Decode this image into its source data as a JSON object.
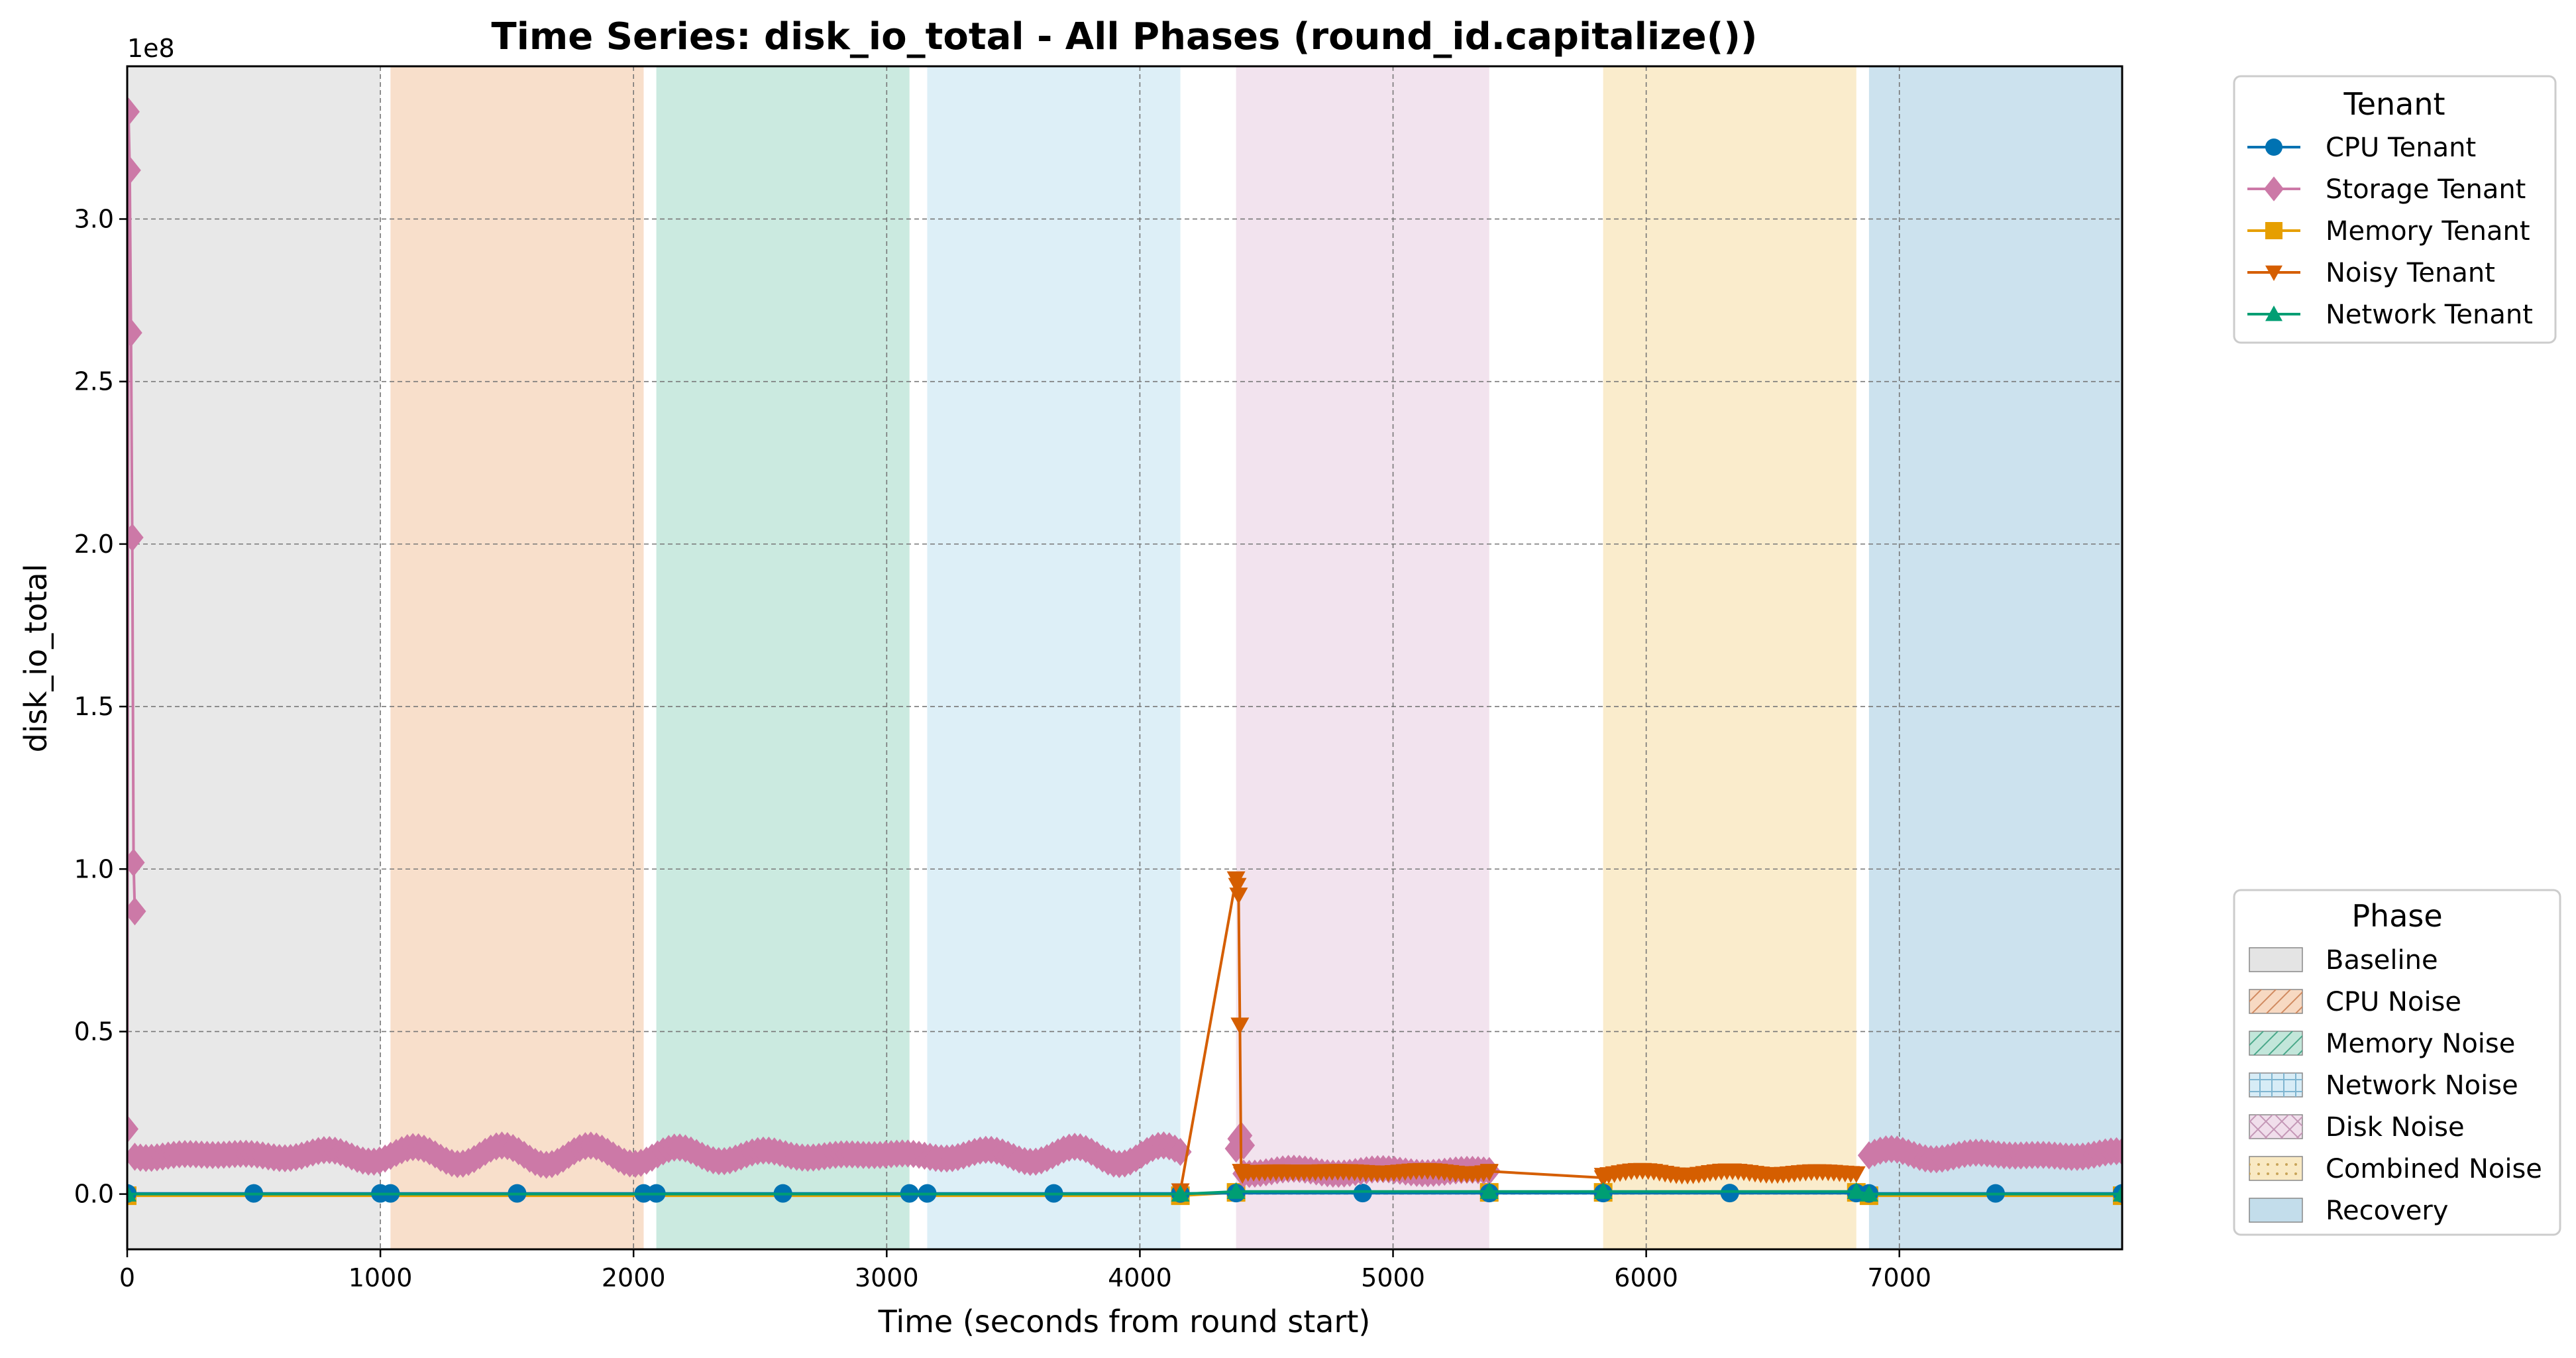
{
  "chart_data": {
    "type": "line",
    "title": "Time Series: disk_io_total - All Phases (round_id.capitalize())",
    "xlabel": "Time (seconds from round start)",
    "ylabel": "disk_io_total",
    "y_offset_label": "1e8",
    "xlim": [
      0,
      7880
    ],
    "ylim": [
      -0.17,
      3.47
    ],
    "y_unit_multiplier": 100000000,
    "x_ticks": [
      0,
      1000,
      2000,
      3000,
      4000,
      5000,
      6000,
      7000
    ],
    "x_tick_labels": [
      "0",
      "1000",
      "2000",
      "3000",
      "4000",
      "5000",
      "6000",
      "7000"
    ],
    "y_ticks": [
      0.0,
      0.5,
      1.0,
      1.5,
      2.0,
      2.5,
      3.0
    ],
    "y_tick_labels": [
      "0.0",
      "0.5",
      "1.0",
      "1.5",
      "2.0",
      "2.5",
      "3.0"
    ],
    "grid": true,
    "phase_legend_title": "Phase",
    "tenant_legend_title": "Tenant",
    "phases": [
      {
        "name": "Baseline",
        "start": 0,
        "end": 1000,
        "color": "#d9d9d9",
        "hatch": "none"
      },
      {
        "name": "CPU Noise",
        "start": 1040,
        "end": 2040,
        "color": "#f4c9a8",
        "hatch": "diag"
      },
      {
        "name": "Memory Noise",
        "start": 2090,
        "end": 3090,
        "color": "#a8dccb",
        "hatch": "diag"
      },
      {
        "name": "Network Noise",
        "start": 3160,
        "end": 4160,
        "color": "#c6e4f2",
        "hatch": "grid"
      },
      {
        "name": "Disk Noise",
        "start": 4380,
        "end": 5380,
        "color": "#ead0e3",
        "hatch": "cross"
      },
      {
        "name": "Combined Noise",
        "start": 5830,
        "end": 6830,
        "color": "#f6dfaa",
        "hatch": "dots"
      },
      {
        "name": "Recovery",
        "start": 6880,
        "end": 7880,
        "color": "#aacfe3",
        "hatch": "none"
      }
    ],
    "series": [
      {
        "name": "CPU Tenant",
        "color": "#0072b2",
        "marker": "circle",
        "segments": [
          {
            "x": [
              0,
              500,
              1000,
              1040,
              1540,
              2040,
              2090,
              2590,
              3090,
              3160,
              3660,
              4160,
              4380,
              4880,
              5380,
              5830,
              6330,
              6830,
              6880,
              7380,
              7880
            ],
            "y": [
              0.002,
              0.002,
              0.002,
              0.002,
              0.002,
              0.002,
              0.002,
              0.002,
              0.002,
              0.002,
              0.002,
              0.002,
              0.003,
              0.003,
              0.003,
              0.003,
              0.003,
              0.003,
              0.002,
              0.002,
              0.002
            ]
          }
        ]
      },
      {
        "name": "Storage Tenant",
        "color": "#cc79a7",
        "marker": "diamond",
        "segments": [
          {
            "x": [
              0,
              5,
              10,
              15,
              20,
              25,
              30
            ],
            "y": [
              0.2,
              3.33,
              3.15,
              2.65,
              2.02,
              1.02,
              0.87
            ]
          },
          {
            "x": [
              30,
              4160
            ],
            "y": [
              0.2,
              0.12
            ],
            "noisy": true,
            "base": 0.12,
            "amp": 0.03
          },
          {
            "x": [
              4380,
              4390,
              4400,
              4410
            ],
            "y": [
              0.14,
              0.17,
              0.18,
              0.15
            ]
          },
          {
            "x": [
              4410,
              5380
            ],
            "y": [
              0.08,
              0.07
            ],
            "noisy": true,
            "base": 0.07,
            "amp": 0.008
          },
          {
            "x": [
              6880,
              7880
            ],
            "y": [
              0.12,
              0.12
            ],
            "noisy": true,
            "base": 0.12,
            "amp": 0.03
          }
        ]
      },
      {
        "name": "Memory Tenant",
        "color": "#e69f00",
        "marker": "square",
        "segments": [
          {
            "x": [
              0,
              4160,
              4380,
              5380,
              5830,
              6830,
              6880,
              7880
            ],
            "y": [
              -0.005,
              -0.005,
              0.005,
              0.005,
              0.005,
              0.005,
              -0.005,
              -0.005
            ]
          }
        ]
      },
      {
        "name": "Noisy Tenant",
        "color": "#d55e00",
        "marker": "triangle-down",
        "segments": [
          {
            "x": [
              4160,
              4380,
              4385,
              4390,
              4395,
              4400,
              4405
            ],
            "y": [
              0.01,
              0.97,
              0.95,
              0.92,
              0.52,
              0.07,
              0.06
            ]
          },
          {
            "x": [
              4405,
              5380
            ],
            "y": [
              0.07,
              0.07
            ],
            "noisy": true,
            "base": 0.068,
            "amp": 0.008
          },
          {
            "x": [
              5380,
              5830
            ],
            "y": [
              0.07,
              0.05
            ]
          },
          {
            "x": [
              5830,
              6830
            ],
            "y": [
              0.065,
              0.065
            ],
            "noisy": true,
            "base": 0.065,
            "amp": 0.008
          }
        ]
      },
      {
        "name": "Network Tenant",
        "color": "#009e73",
        "marker": "triangle-up",
        "segments": [
          {
            "x": [
              0,
              4160,
              4380,
              5380,
              5830,
              6830,
              6880,
              7880
            ],
            "y": [
              0.0,
              0.0,
              0.008,
              0.008,
              0.008,
              0.008,
              0.0,
              0.0
            ]
          }
        ]
      }
    ]
  }
}
